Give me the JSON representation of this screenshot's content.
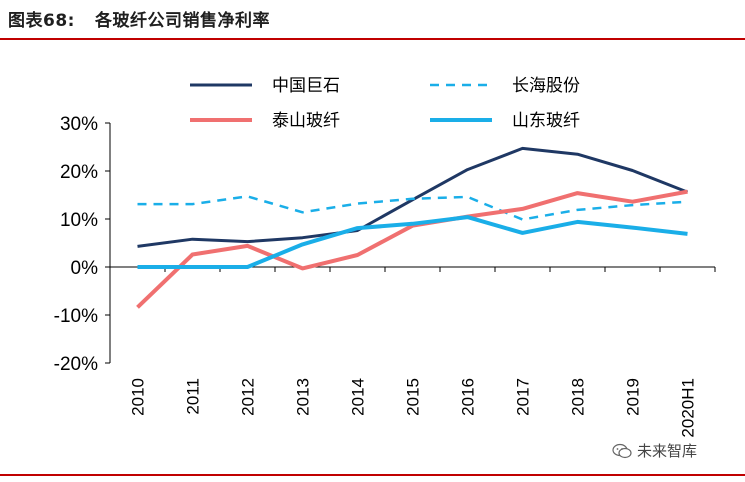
{
  "header": {
    "figure_label": "图表68:",
    "title": "各玻纤公司销售净利率"
  },
  "watermark": {
    "text": "未来智库",
    "icon": "wechat-icon"
  },
  "colors": {
    "accent_rule": "#c00000"
  },
  "chart_data": {
    "type": "line",
    "title": "各玻纤公司销售净利率",
    "categories": [
      "2010",
      "2011",
      "2012",
      "2013",
      "2014",
      "2015",
      "2016",
      "2017",
      "2018",
      "2019",
      "2020H1"
    ],
    "ylim": [
      -20,
      30
    ],
    "yticks": [
      30,
      20,
      10,
      0,
      -10,
      -20
    ],
    "ytick_labels": [
      "30%",
      "20%",
      "10%",
      "0%",
      "-10%",
      "-20%"
    ],
    "y_unit": "%",
    "grid": false,
    "legend_position": "top",
    "series": [
      {
        "name": "中国巨石",
        "color": "#1f3864",
        "dash": "solid",
        "values": [
          4.3,
          5.8,
          5.3,
          6.1,
          7.6,
          14.0,
          20.3,
          24.7,
          23.5,
          20.1,
          15.6
        ]
      },
      {
        "name": "长海股份",
        "color": "#1aaee8",
        "dash": "dashed",
        "values": [
          13.1,
          13.1,
          14.7,
          11.4,
          13.2,
          14.2,
          14.6,
          9.9,
          11.9,
          12.9,
          13.6
        ]
      },
      {
        "name": "泰山玻纤",
        "color": "#f07070",
        "dash": "solid",
        "values": [
          -8.4,
          2.6,
          4.4,
          -0.3,
          2.5,
          8.6,
          10.5,
          12.1,
          15.4,
          13.6,
          15.7
        ]
      },
      {
        "name": "山东玻纤",
        "color": "#1aaee8",
        "dash": "solid",
        "values": [
          0.0,
          0.0,
          0.0,
          4.7,
          8.1,
          9.0,
          10.4,
          7.1,
          9.4,
          8.2,
          6.9
        ]
      }
    ]
  }
}
